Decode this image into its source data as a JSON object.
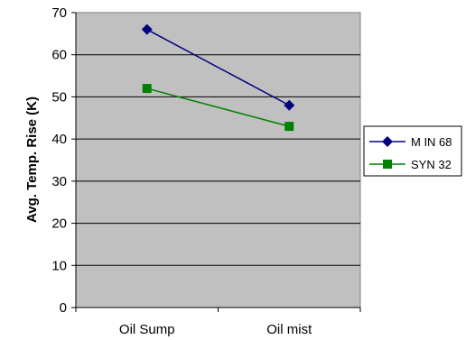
{
  "chart_data": {
    "type": "line",
    "categories": [
      "Oil Sump",
      "Oil mist"
    ],
    "series": [
      {
        "name": "M IN 68",
        "values": [
          66,
          48
        ],
        "color": "#000080",
        "marker": "diamond"
      },
      {
        "name": "SYN 32",
        "values": [
          52,
          43
        ],
        "color": "#008000",
        "marker": "square"
      }
    ],
    "ylabel": "Avg. Temp. Rise (K)",
    "xlabel": "",
    "ylim": [
      0,
      70
    ],
    "yticks": [
      0,
      10,
      20,
      30,
      40,
      50,
      60,
      70
    ],
    "grid": true,
    "plot_background": "#c0c0c0",
    "legend_position": "right"
  }
}
